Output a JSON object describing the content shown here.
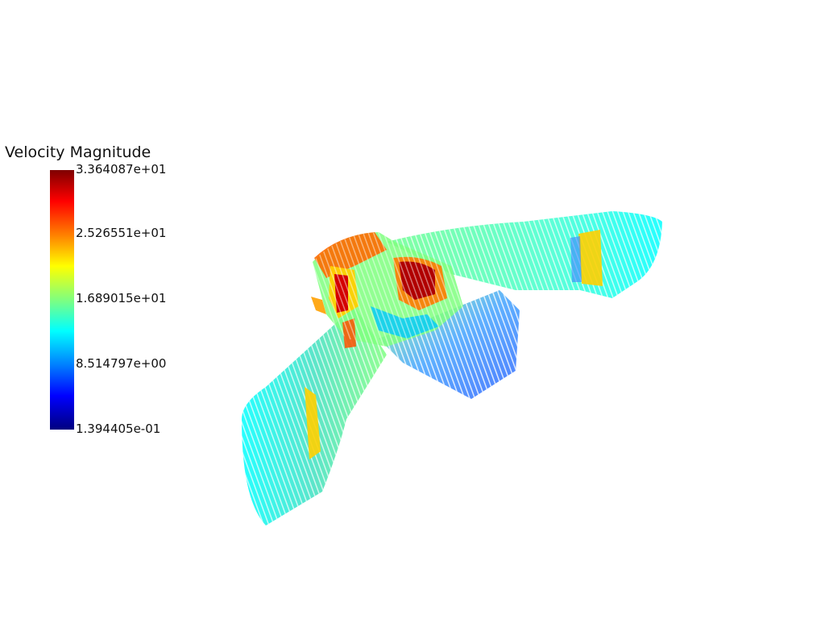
{
  "scalar_bar": {
    "title": "Velocity Magnitude",
    "ticks": [
      "3.364087e+01",
      "2.526551e+01",
      "1.689015e+01",
      "8.514797e+00",
      "1.394405e-01"
    ],
    "range": [
      0.1394405,
      33.64087
    ],
    "colormap": [
      "#00007f",
      "#0000ff",
      "#0080ff",
      "#00ffff",
      "#7fff7f",
      "#ffff00",
      "#ff8000",
      "#ff0000",
      "#7f0000"
    ]
  },
  "background": "#ffffff"
}
